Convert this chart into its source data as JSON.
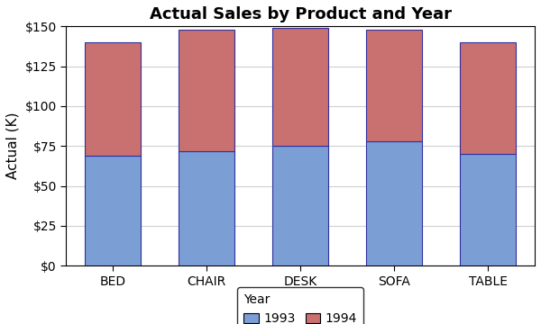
{
  "title": "Actual Sales by Product and Year",
  "ylabel": "Actual (K)",
  "categories": [
    "BED",
    "CHAIR",
    "DESK",
    "SOFA",
    "TABLE"
  ],
  "values_1993": [
    69,
    72,
    75,
    78,
    70
  ],
  "values_1994": [
    71,
    76,
    74,
    70,
    70
  ],
  "color_1993": "#7b9fd4",
  "color_1994": "#c97070",
  "ylim": [
    0,
    150
  ],
  "yticks": [
    0,
    25,
    50,
    75,
    100,
    125,
    150
  ],
  "ytick_labels": [
    "$0",
    "$25",
    "$50",
    "$75",
    "$100",
    "$125",
    "$150"
  ],
  "background_color": "#ffffff",
  "plot_bg_color": "#ffffff",
  "bar_edge_color": "#3030a0",
  "bar_edge_width": 0.8,
  "legend_label_year": "Year",
  "legend_label_1993": "1993",
  "legend_label_1994": "1994",
  "title_fontsize": 13,
  "axis_fontsize": 11,
  "tick_fontsize": 10,
  "legend_fontsize": 10,
  "bar_width": 0.6,
  "grid_color": "#d0d0d0",
  "grid_linewidth": 0.8
}
